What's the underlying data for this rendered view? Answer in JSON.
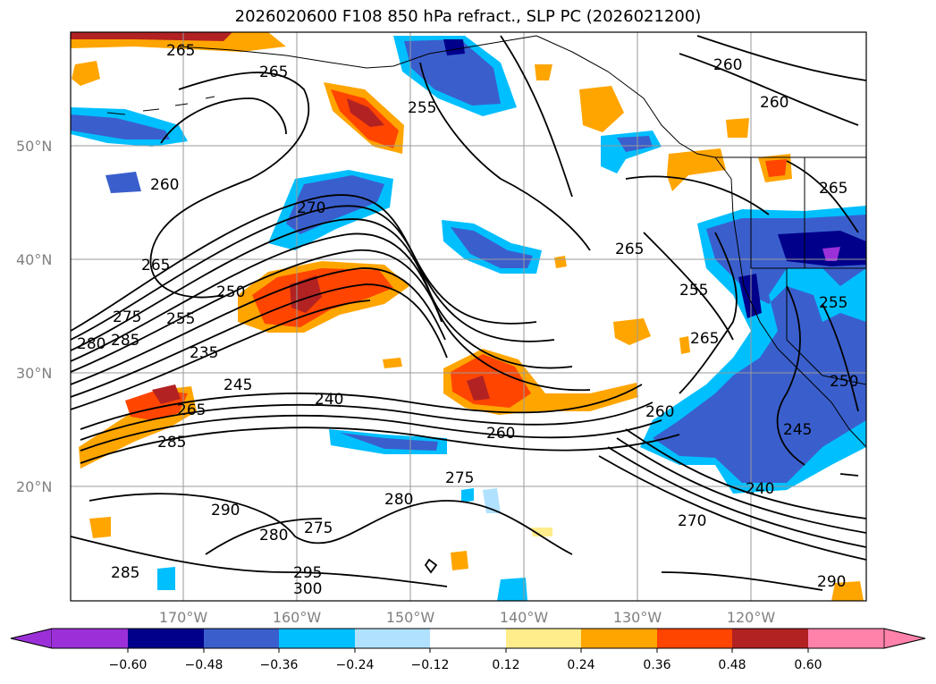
{
  "title": "2026020600 F108 850 hPa refract., SLP PC (2026021200)",
  "lat_labels": [
    "50°N",
    "40°N",
    "30°N",
    "20°N"
  ],
  "lon_labels": [
    "170°W",
    "160°W",
    "150°W",
    "140°W",
    "130°W",
    "120°W"
  ],
  "colorbar": {
    "ticks": [
      "−0.60",
      "−0.48",
      "−0.36",
      "−0.24",
      "−0.12",
      "0.12",
      "0.24",
      "0.36",
      "0.48",
      "0.60"
    ],
    "colors": [
      "#9b30d9",
      "#00008b",
      "#3a5fcd",
      "#00bfff",
      "#b0e2ff",
      "#ffffff",
      "#ffec8b",
      "#ffa500",
      "#ff4500",
      "#b22222",
      "#ff82ab"
    ]
  },
  "contour_labels": [
    "265",
    "265",
    "260",
    "260",
    "260",
    "255",
    "270",
    "265",
    "275",
    "250",
    "255",
    "280",
    "285",
    "235",
    "245",
    "240",
    "265",
    "285",
    "260",
    "275",
    "265",
    "255",
    "245",
    "250",
    "265",
    "260",
    "240",
    "270",
    "290",
    "280",
    "275",
    "280",
    "290",
    "285",
    "295",
    "300",
    "255",
    "265"
  ]
}
